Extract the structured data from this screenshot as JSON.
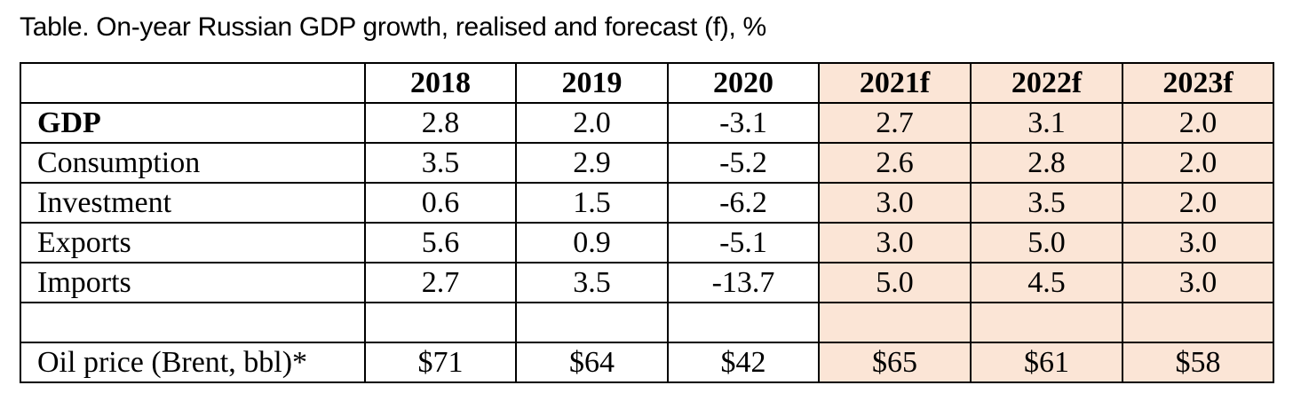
{
  "caption": "Table. On-year Russian GDP growth, realised and forecast (f), %",
  "colors": {
    "forecast_fill": "#fbe5d6",
    "border": "#000000",
    "text": "#000000"
  },
  "table": {
    "headers": [
      "",
      "2018",
      "2019",
      "2020",
      "2021f",
      "2022f",
      "2023f"
    ],
    "forecast_columns": [
      "2021f",
      "2022f",
      "2023f"
    ],
    "rows": [
      {
        "label": "GDP",
        "bold": true,
        "values": [
          "2.8",
          "2.0",
          "-3.1",
          "2.7",
          "3.1",
          "2.0"
        ]
      },
      {
        "label": "Consumption",
        "bold": false,
        "values": [
          "3.5",
          "2.9",
          "-5.2",
          "2.6",
          "2.8",
          "2.0"
        ]
      },
      {
        "label": "Investment",
        "bold": false,
        "values": [
          "0.6",
          "1.5",
          "-6.2",
          "3.0",
          "3.5",
          "2.0"
        ]
      },
      {
        "label": "Exports",
        "bold": false,
        "values": [
          "5.6",
          "0.9",
          "-5.1",
          "3.0",
          "5.0",
          "3.0"
        ]
      },
      {
        "label": "Imports",
        "bold": false,
        "values": [
          "2.7",
          "3.5",
          "-13.7",
          "5.0",
          "4.5",
          "3.0"
        ]
      },
      {
        "label": "",
        "bold": false,
        "values": [
          "",
          "",
          "",
          "",
          "",
          ""
        ]
      },
      {
        "label": "Oil price (Brent, bbl)*",
        "bold": false,
        "values": [
          "$71",
          "$64",
          "$42",
          "$65",
          "$61",
          "$58"
        ]
      }
    ]
  }
}
